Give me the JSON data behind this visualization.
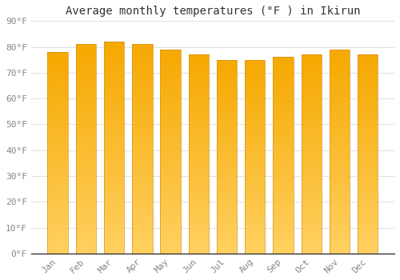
{
  "title": "Average monthly temperatures (°F ) in Ikirun",
  "categories": [
    "Jan",
    "Feb",
    "Mar",
    "Apr",
    "May",
    "Jun",
    "Jul",
    "Aug",
    "Sep",
    "Oct",
    "Nov",
    "Dec"
  ],
  "values": [
    78,
    81,
    82,
    81,
    79,
    77,
    75,
    75,
    76,
    77,
    79,
    77
  ],
  "ylim": [
    0,
    90
  ],
  "yticks": [
    0,
    10,
    20,
    30,
    40,
    50,
    60,
    70,
    80,
    90
  ],
  "ytick_labels": [
    "0°F",
    "10°F",
    "20°F",
    "30°F",
    "40°F",
    "50°F",
    "60°F",
    "70°F",
    "80°F",
    "90°F"
  ],
  "bar_color_bottom": "#FFD060",
  "bar_color_top": "#F5A800",
  "bar_edge_color": "#D4921A",
  "background_color": "#FFFFFF",
  "grid_color": "#E0E0E0",
  "title_fontsize": 10,
  "tick_fontsize": 8,
  "bar_width": 0.72,
  "title_color": "#333333",
  "tick_color": "#888888"
}
